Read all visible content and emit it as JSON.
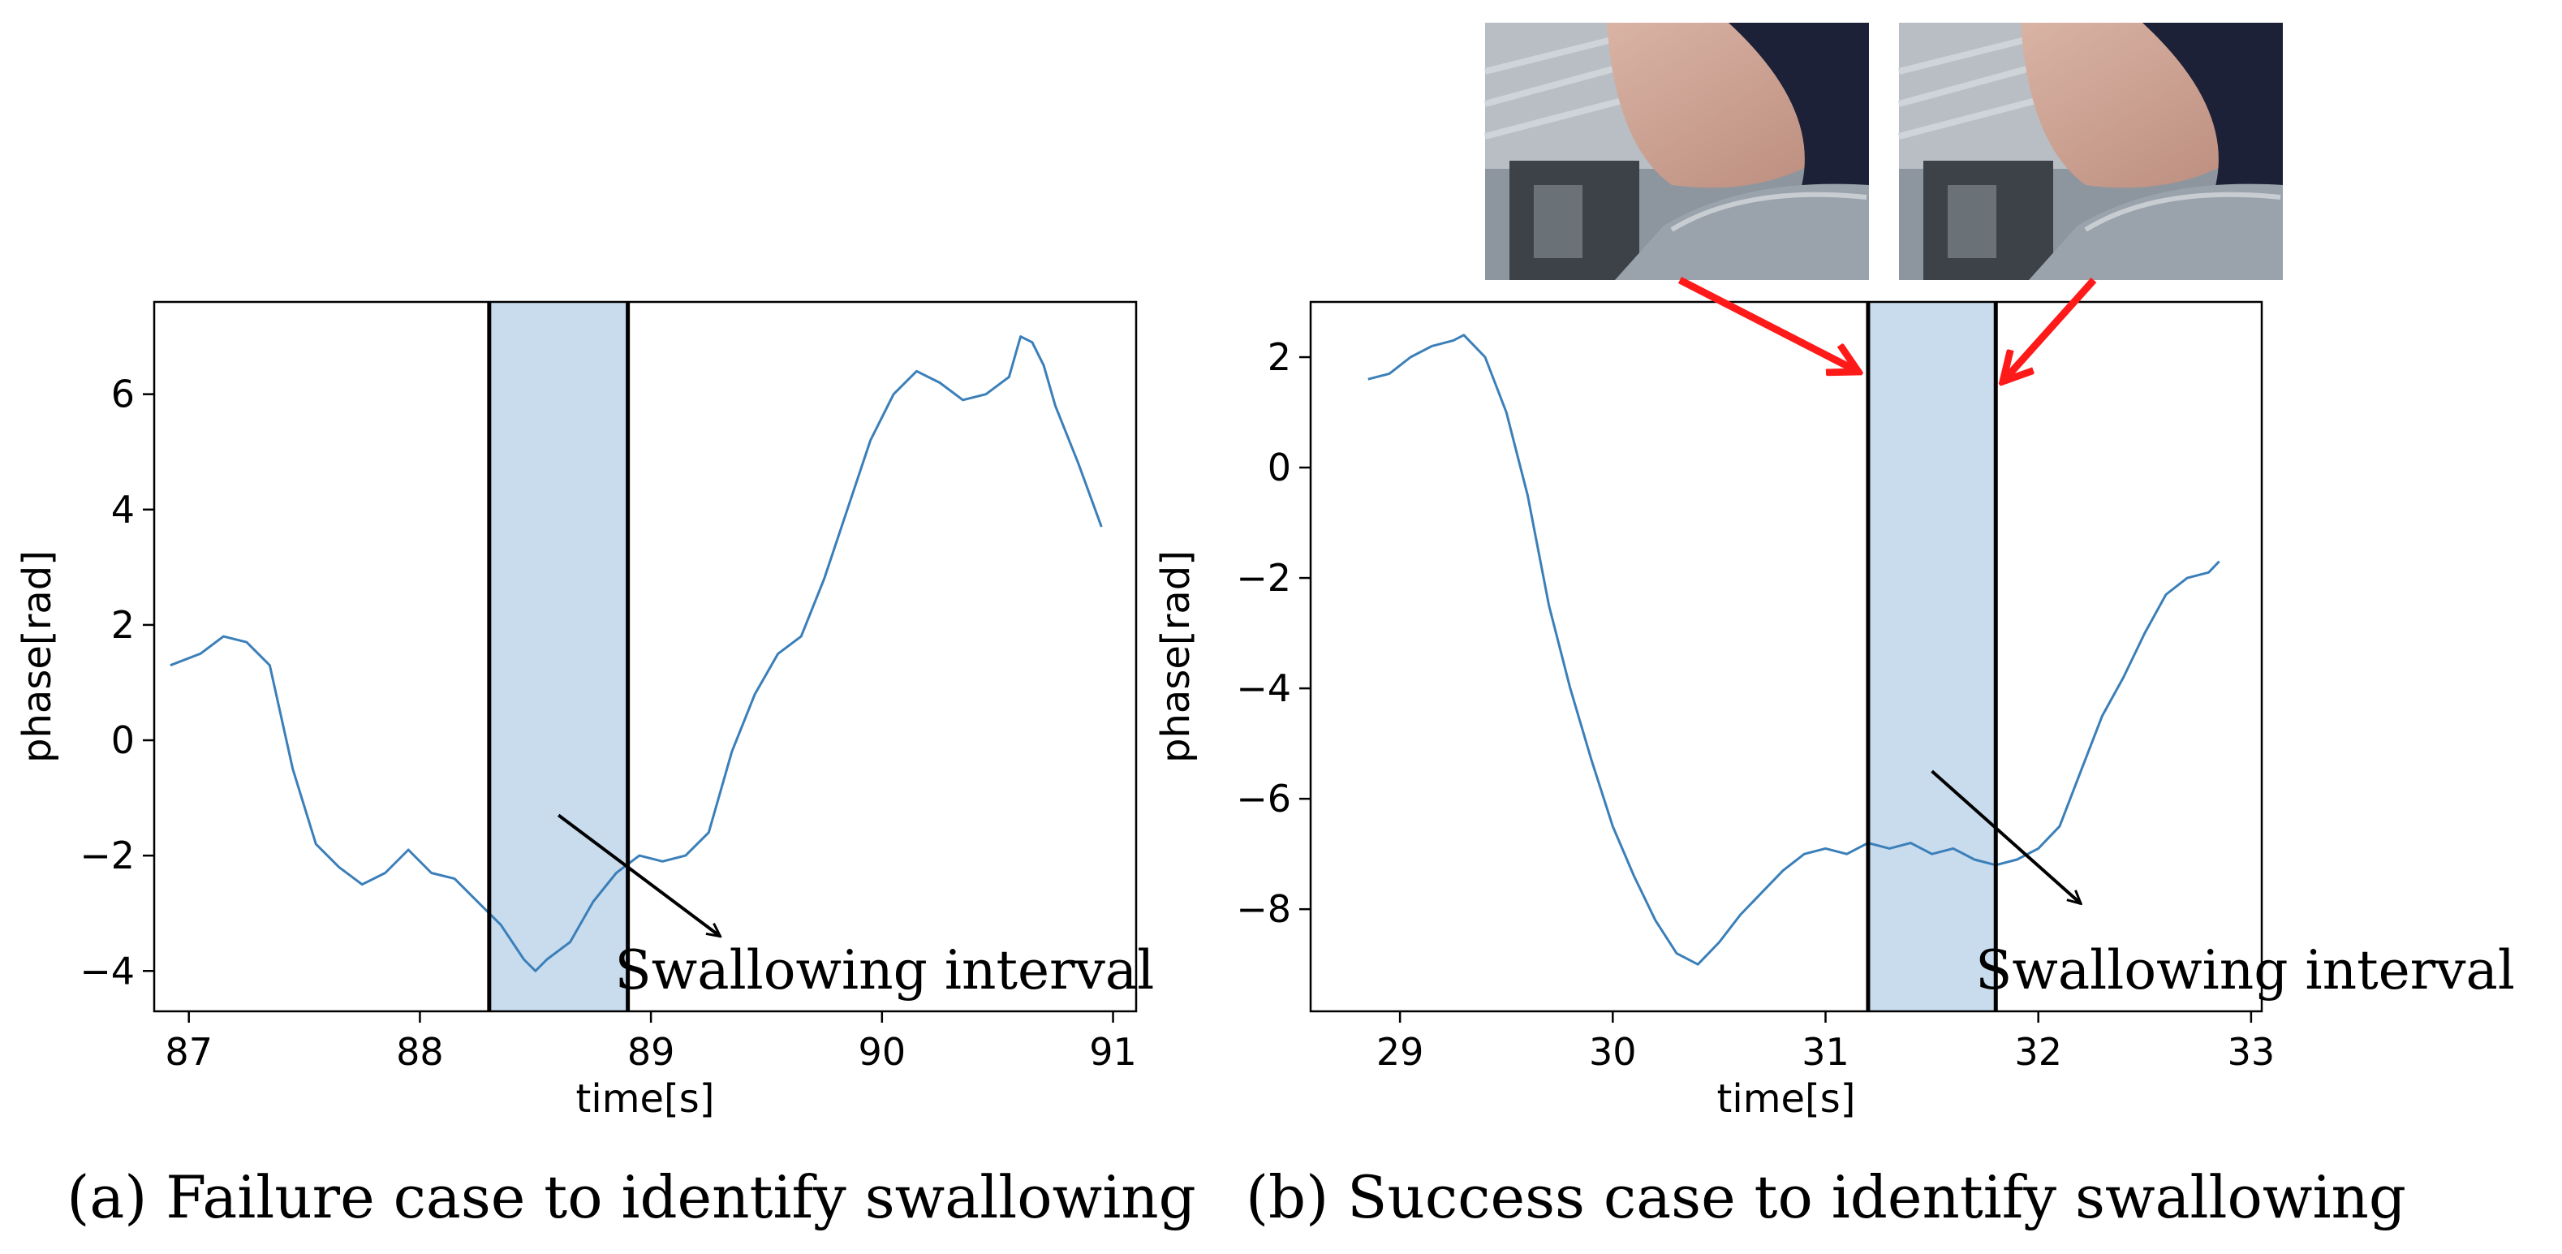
{
  "colors": {
    "line": "#3b7fb9",
    "band_fill": "#c9dcee",
    "band_edge": "#000000",
    "arrow": "#000000",
    "red_arrow": "#ff1a1a"
  },
  "chart_data": [
    {
      "type": "line",
      "caption": "(a) Failure case to identify swallowing",
      "xlabel": "time[s]",
      "ylabel": "phase[rad]",
      "xlim": [
        86.85,
        91.1
      ],
      "ylim": [
        -4.7,
        7.6
      ],
      "xticks": [
        87,
        88,
        89,
        90,
        91
      ],
      "yticks": [
        -4,
        -2,
        0,
        2,
        4,
        6
      ],
      "swallowing_interval": [
        88.3,
        88.9
      ],
      "annotation": {
        "text": "Swallowing interval",
        "points_to": {
          "x": 88.6,
          "y": -1.3
        },
        "from": {
          "x": 89.3,
          "y": -3.4
        }
      },
      "series": [
        {
          "x": [
            86.92,
            87.05,
            87.15,
            87.25,
            87.35,
            87.45,
            87.55,
            87.65,
            87.75,
            87.85,
            87.95,
            88.05,
            88.15,
            88.25,
            88.35,
            88.45,
            88.5,
            88.55,
            88.65,
            88.75,
            88.85,
            88.95,
            89.05,
            89.15,
            89.25,
            89.35,
            89.45,
            89.55,
            89.65,
            89.75,
            89.85,
            89.95,
            90.05,
            90.15,
            90.25,
            90.35,
            90.45,
            90.55,
            90.6,
            90.65,
            90.7,
            90.75,
            90.85,
            90.95
          ],
          "y": [
            1.3,
            1.5,
            1.8,
            1.7,
            1.3,
            -0.5,
            -1.8,
            -2.2,
            -2.5,
            -2.3,
            -1.9,
            -2.3,
            -2.4,
            -2.8,
            -3.2,
            -3.8,
            -4.0,
            -3.8,
            -3.5,
            -2.8,
            -2.3,
            -2.0,
            -2.1,
            -2.0,
            -1.6,
            -0.2,
            0.8,
            1.5,
            1.8,
            2.8,
            4.0,
            5.2,
            6.0,
            6.4,
            6.2,
            5.9,
            6.0,
            6.3,
            7.0,
            6.9,
            6.5,
            5.8,
            4.8,
            3.7
          ]
        }
      ]
    },
    {
      "type": "line",
      "caption": "(b) Success case to identify swallowing",
      "xlabel": "time[s]",
      "ylabel": "phase[rad]",
      "xlim": [
        28.58,
        33.05
      ],
      "ylim": [
        -9.85,
        3.0
      ],
      "xticks": [
        29,
        30,
        31,
        32,
        33
      ],
      "yticks": [
        -8,
        -6,
        -4,
        -2,
        0,
        2
      ],
      "swallowing_interval": [
        31.2,
        31.8
      ],
      "annotation": {
        "text": "Swallowing interval",
        "points_to": {
          "x": 31.5,
          "y": -5.5
        },
        "from": {
          "x": 32.2,
          "y": -7.9
        }
      },
      "series": [
        {
          "x": [
            28.85,
            28.95,
            29.05,
            29.15,
            29.25,
            29.3,
            29.4,
            29.5,
            29.6,
            29.7,
            29.8,
            29.9,
            30.0,
            30.1,
            30.2,
            30.3,
            30.4,
            30.5,
            30.6,
            30.7,
            30.8,
            30.9,
            31.0,
            31.1,
            31.2,
            31.3,
            31.4,
            31.5,
            31.6,
            31.7,
            31.8,
            31.9,
            32.0,
            32.1,
            32.2,
            32.3,
            32.4,
            32.5,
            32.6,
            32.7,
            32.8,
            32.85
          ],
          "y": [
            1.6,
            1.7,
            2.0,
            2.2,
            2.3,
            2.4,
            2.0,
            1.0,
            -0.5,
            -2.5,
            -4.0,
            -5.3,
            -6.5,
            -7.4,
            -8.2,
            -8.8,
            -9.0,
            -8.6,
            -8.1,
            -7.7,
            -7.3,
            -7.0,
            -6.9,
            -7.0,
            -6.8,
            -6.9,
            -6.8,
            -7.0,
            -6.9,
            -7.1,
            -7.2,
            -7.1,
            -6.9,
            -6.5,
            -5.5,
            -4.5,
            -3.8,
            -3.0,
            -2.3,
            -2.0,
            -1.9,
            -1.7
          ]
        }
      ]
    }
  ]
}
